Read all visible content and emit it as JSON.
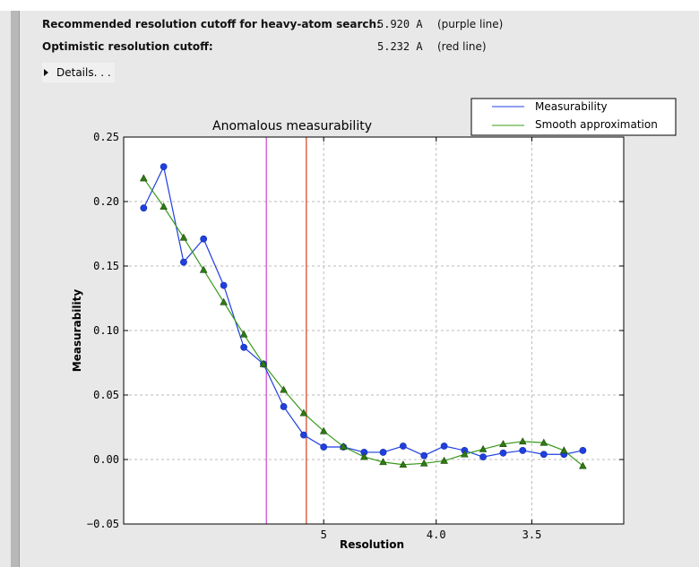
{
  "header": {
    "rows": [
      {
        "label": "Recommended resolution cutoff for heavy-atom search:",
        "value": "5.920 A",
        "note": "(purple line)"
      },
      {
        "label": "Optimistic resolution cutoff:",
        "value": "5.232 A",
        "note": "(red line)"
      }
    ],
    "details_label": "Details. . ."
  },
  "chart_data": {
    "type": "line",
    "title": "Anomalous measurability",
    "xlabel": "Resolution",
    "ylabel": "Measurability",
    "x_scale": "1/d^2",
    "xlim_inverse_d_squared": [
      0,
      0.1
    ],
    "ylim": [
      -0.05,
      0.25
    ],
    "yticks": [
      "0.25",
      "0.20",
      "0.15",
      "0.10",
      "0.05",
      "0.00",
      "−0.05"
    ],
    "ytick_values": [
      0.25,
      0.2,
      0.15,
      0.1,
      0.05,
      0.0,
      -0.05
    ],
    "xticks": [
      {
        "value": 5,
        "label": "5"
      },
      {
        "value": 4.0,
        "label": "4.0"
      },
      {
        "value": 3.5,
        "label": "3.5"
      }
    ],
    "grid": true,
    "legend_placement": "top-right (outside)",
    "x": [
      15.81,
      11.18,
      9.13,
      7.91,
      7.07,
      6.45,
      5.98,
      5.59,
      5.27,
      5.0,
      4.77,
      4.56,
      4.39,
      4.23,
      4.08,
      3.95,
      3.83,
      3.73,
      3.63,
      3.54,
      3.45,
      3.37,
      3.3
    ],
    "series": [
      {
        "name": "Measurability",
        "color": "#1f3fe0",
        "marker": "circle",
        "values": [
          0.195,
          0.227,
          0.153,
          0.171,
          0.135,
          0.087,
          0.074,
          0.041,
          0.019,
          0.0097,
          0.0097,
          0.0056,
          0.0056,
          0.0104,
          0.003,
          0.0104,
          0.007,
          0.002,
          0.005,
          0.007,
          0.004,
          0.004,
          0.007
        ]
      },
      {
        "name": "Smooth approximation",
        "color": "#3a9a1a",
        "marker": "triangle",
        "values": [
          0.218,
          0.196,
          0.172,
          0.147,
          0.122,
          0.097,
          0.074,
          0.054,
          0.036,
          0.022,
          0.01,
          0.002,
          -0.002,
          -0.004,
          -0.003,
          -0.001,
          0.004,
          0.008,
          0.012,
          0.014,
          0.013,
          0.007,
          -0.005
        ]
      }
    ],
    "vlines": [
      {
        "resolution": 5.92,
        "color": "#d040d0"
      },
      {
        "resolution": 5.232,
        "color": "#d04020"
      }
    ]
  }
}
